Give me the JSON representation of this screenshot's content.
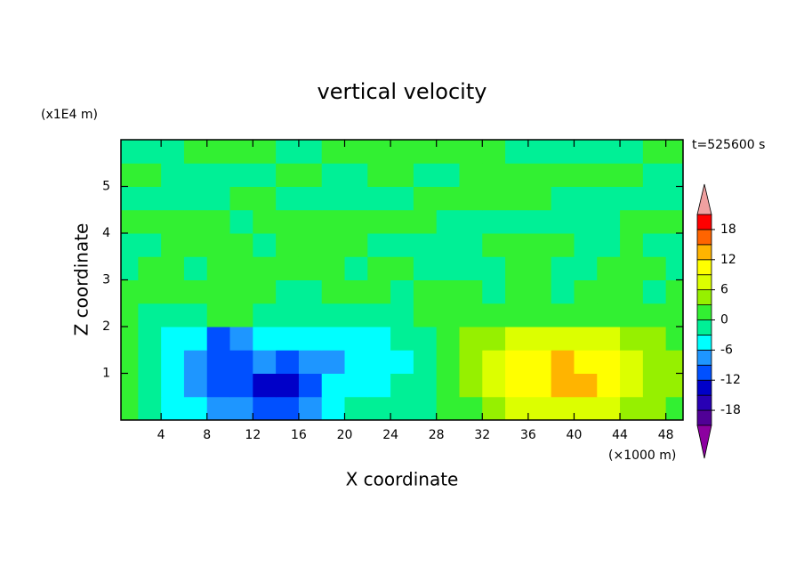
{
  "chart_data": {
    "type": "contour",
    "title": "vertical velocity",
    "x_label": "X coordinate",
    "y_label": "Z coordinate",
    "x_unit": "(×1000 m)",
    "y_unit": "(x1E4 m)",
    "annotation": "t=525600 s",
    "xlim": [
      0.5,
      49.5
    ],
    "ylim": [
      0,
      6
    ],
    "xticks": [
      4,
      8,
      12,
      16,
      20,
      24,
      28,
      32,
      36,
      40,
      44,
      48
    ],
    "yticks": [
      1,
      2,
      3,
      4,
      5
    ],
    "x": [
      1,
      3,
      5,
      7,
      9,
      11,
      13,
      15,
      17,
      19,
      21,
      23,
      25,
      27,
      29,
      31,
      33,
      35,
      37,
      39,
      41,
      43,
      45,
      47,
      49
    ],
    "y": [
      0.25,
      0.75,
      1.25,
      1.75,
      2.25,
      2.75,
      3.25,
      3.75,
      4.25,
      4.75,
      5.25,
      5.75
    ],
    "z": [
      [
        2,
        -2,
        -4,
        -6,
        -8,
        -8,
        -10,
        -12,
        -8,
        -4,
        -2,
        -2,
        -2,
        -1,
        0,
        2,
        4,
        6,
        7,
        7,
        7,
        6,
        5,
        3,
        2
      ],
      [
        1,
        -3,
        -5,
        -8,
        -10,
        -11,
        -13,
        -14,
        -10,
        -6,
        -5,
        -4,
        -3,
        -1,
        1,
        4,
        7,
        9,
        11,
        13,
        12,
        9,
        7,
        5,
        3
      ],
      [
        0,
        -3,
        -5,
        -8,
        -11,
        -11,
        -9,
        -10,
        -9,
        -7,
        -5,
        -5,
        -4,
        -2,
        1,
        4,
        7,
        9,
        11,
        12,
        11,
        9,
        7,
        5,
        3
      ],
      [
        0,
        -2,
        -4,
        -6,
        -10,
        -8,
        -6,
        -5,
        -5,
        -5,
        -4,
        -4,
        -2,
        -1,
        1,
        3,
        5,
        7,
        8,
        8,
        8,
        7,
        5,
        3,
        2
      ],
      [
        1,
        -1,
        -2,
        -2,
        1,
        0,
        -1,
        -2,
        -2,
        -2,
        -1,
        -1,
        -1,
        0,
        0,
        1,
        2,
        2,
        2,
        2,
        2,
        1,
        1,
        1,
        1
      ],
      [
        1,
        1,
        2,
        1,
        1,
        1,
        1,
        -1,
        -1,
        1,
        1,
        1,
        -1,
        1,
        1,
        1,
        -1,
        1,
        1,
        -1,
        1,
        1,
        1,
        -1,
        1
      ],
      [
        -1,
        1,
        1,
        -1,
        1,
        1,
        1,
        1,
        1,
        1,
        -1,
        1,
        1,
        -1,
        -1,
        -1,
        -1,
        1,
        1,
        -1,
        -1,
        1,
        1,
        1,
        -1
      ],
      [
        -1,
        -1,
        1,
        1,
        1,
        1,
        -1,
        1,
        1,
        1,
        1,
        -1,
        -1,
        -1,
        -1,
        -1,
        1,
        1,
        1,
        1,
        -1,
        -1,
        1,
        -1,
        -1
      ],
      [
        1,
        1,
        1,
        1,
        1,
        -1,
        1,
        1,
        1,
        1,
        1,
        1,
        1,
        1,
        -1,
        -1,
        -1,
        -1,
        -1,
        -1,
        -1,
        -1,
        1,
        1,
        1
      ],
      [
        -1,
        -1,
        -1,
        -1,
        -1,
        1,
        1,
        -1,
        -1,
        -1,
        -1,
        -1,
        -1,
        1,
        1,
        1,
        1,
        1,
        1,
        -1,
        -1,
        -1,
        -1,
        -1,
        -1
      ],
      [
        1,
        1,
        -1,
        -1,
        -1,
        -1,
        -1,
        1,
        1,
        -1,
        -1,
        1,
        1,
        -1,
        -1,
        1,
        1,
        1,
        1,
        1,
        1,
        1,
        1,
        -1,
        -1
      ],
      [
        -1,
        -1,
        -1,
        1,
        1,
        1,
        1,
        -1,
        -1,
        1,
        1,
        1,
        1,
        1,
        1,
        1,
        1,
        -1,
        -1,
        -1,
        -1,
        -1,
        -1,
        1,
        1
      ]
    ],
    "levels": [
      -21,
      -18,
      -15,
      -12,
      -9,
      -6,
      -3,
      0,
      3,
      6,
      9,
      12,
      15,
      18,
      21
    ],
    "colors": [
      "#500096",
      "#2800b4",
      "#0000c8",
      "#0050ff",
      "#1e96ff",
      "#00ffff",
      "#00f096",
      "#32f032",
      "#96f000",
      "#dcff00",
      "#ffff00",
      "#ffb400",
      "#ff6400",
      "#ff0000"
    ],
    "under_color": "#8c00a0",
    "over_color": "#f0a0a0",
    "colorbar_ticks": [
      -18,
      -12,
      -6,
      0,
      6,
      12,
      18
    ]
  }
}
